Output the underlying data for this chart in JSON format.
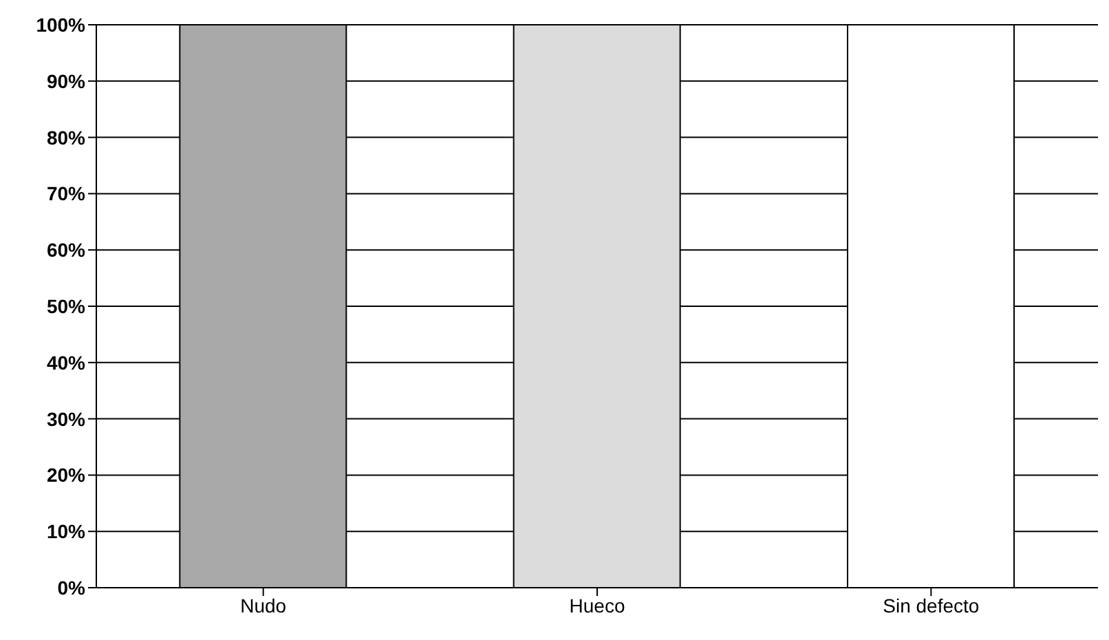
{
  "chart_data": {
    "type": "bar",
    "categories": [
      "Nudo",
      "Hueco",
      "Sin defecto"
    ],
    "values": [
      100,
      100,
      100
    ],
    "colors": [
      "#a8a8a8",
      "#dcdcdc",
      "#ffffff"
    ],
    "ylim": [
      0,
      100
    ],
    "yticks": [
      {
        "value": 0,
        "label": "0%"
      },
      {
        "value": 10,
        "label": "10%"
      },
      {
        "value": 20,
        "label": "20%"
      },
      {
        "value": 30,
        "label": "30%"
      },
      {
        "value": 40,
        "label": "40%"
      },
      {
        "value": 50,
        "label": "50%"
      },
      {
        "value": 60,
        "label": "60%"
      },
      {
        "value": 70,
        "label": "70%"
      },
      {
        "value": 80,
        "label": "80%"
      },
      {
        "value": 90,
        "label": "90%"
      },
      {
        "value": 100,
        "label": "100%"
      }
    ],
    "grid": "y"
  }
}
